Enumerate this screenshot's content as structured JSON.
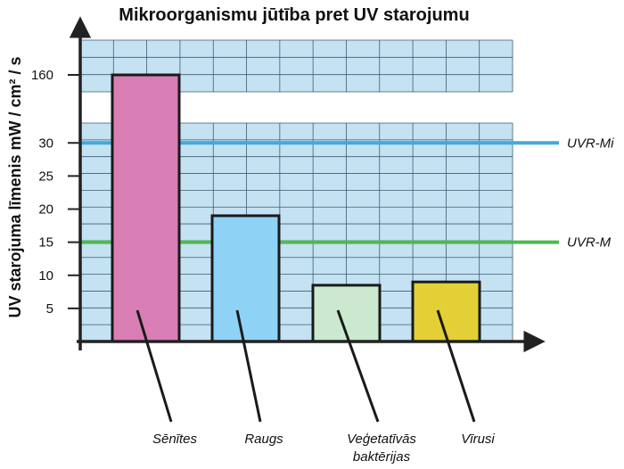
{
  "chart_data": {
    "type": "bar",
    "title": "Mikroorganismu jūtība pret UV starojumu",
    "ylabel": "UV starojuma līmenis  mW / cm² / s",
    "xlabel": "",
    "axis_break": true,
    "grid": true,
    "yticks_lower": [
      5,
      10,
      15,
      20,
      25,
      30
    ],
    "yticks_upper": [
      160
    ],
    "ylim_lower": [
      0,
      33
    ],
    "categories": [
      {
        "lines": [
          "Sēnītes"
        ]
      },
      {
        "lines": [
          "Raugs"
        ]
      },
      {
        "lines": [
          "Veģetatīvās",
          "baktērijas"
        ]
      },
      {
        "lines": [
          "Vīrusi"
        ]
      }
    ],
    "values": [
      160,
      19,
      8.5,
      9
    ],
    "bar_colors": [
      "#d97eb4",
      "#8ed3f5",
      "#cbe9cf",
      "#e3d037"
    ],
    "reference_lines": [
      {
        "name": "UVR-Mi",
        "value": 30,
        "color": "#42a9dc"
      },
      {
        "name": "UVR-M",
        "value": 15,
        "color": "#4cbc4e"
      }
    ],
    "colors": {
      "plot_background": "#c5e2f3",
      "grid": "#3c5c70",
      "axis": "#222222"
    }
  }
}
